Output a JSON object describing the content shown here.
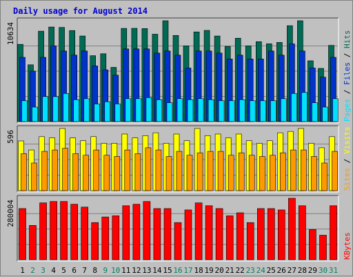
{
  "chart_data": {
    "type": "bar",
    "title": "Daily usage for August 2014",
    "categories": [
      "1",
      "2",
      "3",
      "4",
      "5",
      "6",
      "7",
      "8",
      "9",
      "10",
      "11",
      "12",
      "13",
      "14",
      "15",
      "16",
      "17",
      "18",
      "19",
      "20",
      "21",
      "22",
      "23",
      "24",
      "25",
      "26",
      "27",
      "28",
      "29",
      "30",
      "31"
    ],
    "weekend_days": [
      "2",
      "3",
      "9",
      "10",
      "16",
      "17",
      "23",
      "24",
      "30",
      "31"
    ],
    "colors": {
      "hits": "#006b54",
      "files": "#0033cc",
      "pages": "#00e0ff",
      "visits": "#ffff00",
      "sites": "#ff9900",
      "kbytes": "#ff0000",
      "weekday_label": "#000000",
      "weekend_label": "#008060",
      "background": "#c0c0c0",
      "plot_bg": "#c0c0c0"
    },
    "panels": [
      {
        "name": "hits-files-pages",
        "ymax_label": "10634",
        "ymax": 10634,
        "legend": [
          {
            "text": "Pages",
            "color": "#00e0ff"
          },
          {
            "text": " / ",
            "color": "#000000"
          },
          {
            "text": "Files",
            "color": "#0033cc"
          },
          {
            "text": " / ",
            "color": "#000000"
          },
          {
            "text": "Hits",
            "color": "#006b54"
          }
        ],
        "series": [
          {
            "name": "Hits",
            "color": "#006b54",
            "values": [
              8145,
              5987,
              9535,
              9970,
              9928,
              9598,
              9023,
              6948,
              7153,
              5718,
              9825,
              9834,
              9813,
              9216,
              10634,
              9085,
              7991,
              9453,
              9616,
              9023,
              7925,
              8793,
              7991,
              8426,
              8198,
              8350,
              10107,
              10634,
              6409,
              5608,
              8033
            ]
          },
          {
            "name": "Files",
            "color": "#0033cc",
            "values": [
              6774,
              5326,
              6774,
              7982,
              7444,
              7006,
              7444,
              5872,
              5453,
              4895,
              7663,
              7663,
              7663,
              7228,
              7444,
              7006,
              5653,
              7444,
              7444,
              7226,
              6599,
              7006,
              6599,
              6599,
              7444,
              7006,
              8193,
              7444,
              5653,
              4681,
              6774
            ]
          },
          {
            "name": "Pages",
            "color": "#00e0ff",
            "values": [
              2198,
              1527,
              2639,
              2639,
              2963,
              2308,
              2419,
              1855,
              2089,
              1855,
              2419,
              2419,
              2529,
              2308,
              1985,
              2419,
              2308,
              2419,
              2308,
              2198,
              2198,
              2308,
              2198,
              2198,
              2198,
              2419,
              2963,
              3073,
              1985,
              1527,
              2419
            ]
          }
        ]
      },
      {
        "name": "visits-sites",
        "ymax_label": "596",
        "ymax": 596,
        "legend": [
          {
            "text": "Sites",
            "color": "#ff9900"
          },
          {
            "text": " / ",
            "color": "#000000"
          },
          {
            "text": "Visits",
            "color": "#ffff00"
          }
        ],
        "series": [
          {
            "name": "Visits",
            "color": "#ffff00",
            "values": [
              477,
              390,
              518,
              506,
              596,
              506,
              479,
              518,
              454,
              454,
              543,
              506,
              528,
              555,
              454,
              543,
              479,
              596,
              528,
              543,
              506,
              543,
              479,
              454,
              479,
              555,
              568,
              596,
              454,
              411,
              518
            ]
          },
          {
            "name": "Sites",
            "color": "#ff9900",
            "values": [
              355,
              265,
              377,
              390,
              406,
              355,
              340,
              390,
              340,
              328,
              390,
              355,
              411,
              390,
              328,
              377,
              340,
              363,
              377,
              377,
              340,
              363,
              340,
              328,
              340,
              363,
              390,
              390,
              328,
              265,
              377
            ]
          }
        ]
      },
      {
        "name": "kbytes",
        "ymax_label": "280004",
        "ymax": 280004,
        "legend": [
          {
            "text": "KBytes",
            "color": "#ff0000"
          }
        ],
        "series": [
          {
            "name": "KBytes",
            "color": "#ff0000",
            "values": [
              233212,
              156342,
              258912,
              265305,
              265305,
              252519,
              239733,
              169128,
              194700,
              200094,
              246126,
              252519,
              265305,
              233212,
              233212,
              169128,
              226820,
              258912,
              246126,
              233212,
              200094,
              213880,
              169128,
              233212,
              233212,
              226820,
              280004,
              246126,
              137164,
              111592,
              246126
            ]
          }
        ]
      }
    ]
  }
}
